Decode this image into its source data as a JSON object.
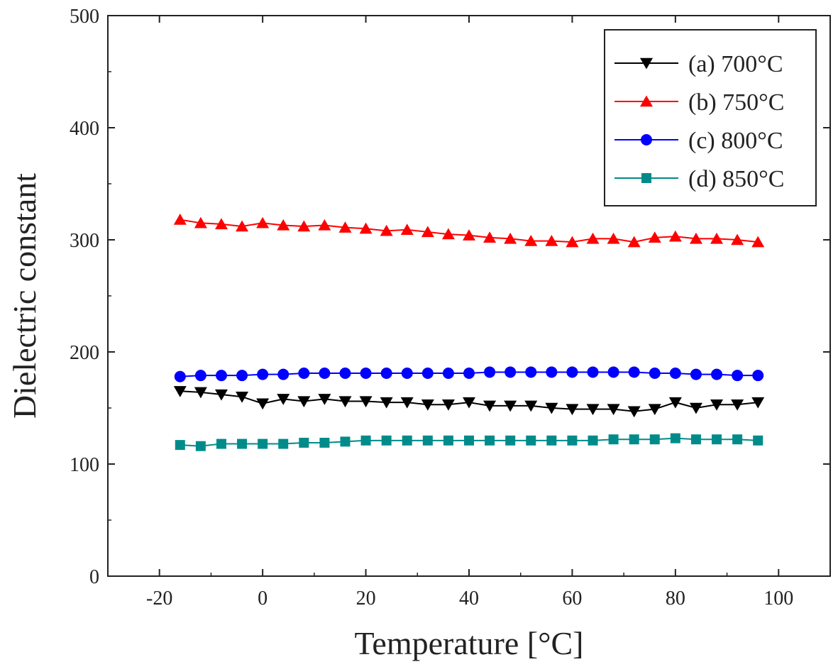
{
  "chart_data": {
    "type": "line",
    "title": "",
    "xlabel": "Temperature [°C]",
    "ylabel": "Dielectric constant",
    "xlim": [
      -30,
      110
    ],
    "ylim": [
      0,
      500
    ],
    "xticks": [
      -20,
      0,
      20,
      40,
      60,
      80,
      100
    ],
    "yticks": [
      0,
      100,
      200,
      300,
      400,
      500
    ],
    "grid": false,
    "legend_position": "top-right",
    "x": [
      -16,
      -12,
      -8,
      -4,
      0,
      4,
      8,
      12,
      16,
      20,
      24,
      28,
      32,
      36,
      40,
      44,
      48,
      52,
      56,
      60,
      64,
      68,
      72,
      76,
      80,
      84,
      88,
      92,
      96
    ],
    "series": [
      {
        "name": "(a) 700°C",
        "color": "#000000",
        "marker": "triangle-down",
        "values": [
          165,
          164,
          162,
          160,
          154,
          158,
          156,
          158,
          156,
          156,
          155,
          155,
          153,
          153,
          155,
          152,
          152,
          152,
          150,
          149,
          149,
          149,
          147,
          149,
          155,
          150,
          153,
          153,
          155
        ]
      },
      {
        "name": "(b) 750°C",
        "color": "#ff0000",
        "marker": "triangle-up",
        "values": [
          318,
          315,
          314,
          312,
          315,
          313,
          312,
          313,
          311,
          310,
          308,
          309,
          307,
          305,
          304,
          302,
          301,
          299,
          299,
          298,
          301,
          301,
          298,
          302,
          303,
          301,
          301,
          300,
          298
        ]
      },
      {
        "name": "(c) 800°C",
        "color": "#0000ff",
        "marker": "circle",
        "values": [
          178,
          179,
          179,
          179,
          180,
          180,
          181,
          181,
          181,
          181,
          181,
          181,
          181,
          181,
          181,
          182,
          182,
          182,
          182,
          182,
          182,
          182,
          182,
          181,
          181,
          180,
          180,
          179,
          179
        ]
      },
      {
        "name": "(d) 850°C",
        "color": "#008b8b",
        "marker": "square",
        "values": [
          117,
          116,
          118,
          118,
          118,
          118,
          119,
          119,
          120,
          121,
          121,
          121,
          121,
          121,
          121,
          121,
          121,
          121,
          121,
          121,
          121,
          122,
          122,
          122,
          123,
          122,
          122,
          122,
          121
        ]
      }
    ]
  }
}
